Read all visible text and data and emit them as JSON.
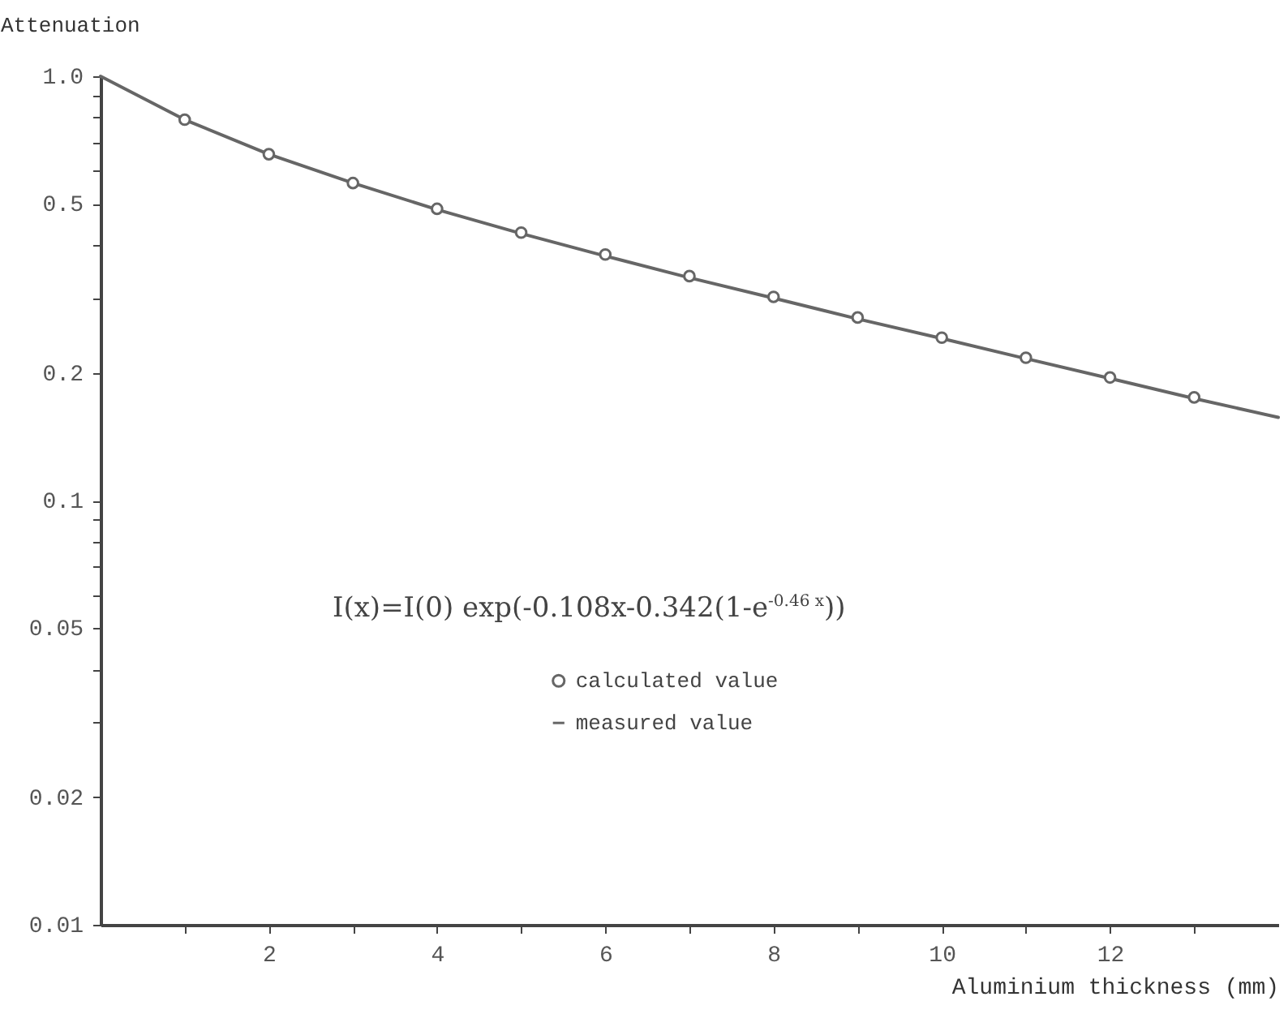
{
  "chart_data": {
    "type": "line",
    "xlabel": "Aluminium  thickness (mm)",
    "ylabel": "Attenuation",
    "annotations": [
      "I(x)=I(0) exp(-0.108x-0.342(1-e$^{-0.46 x}$))"
    ],
    "series": [
      {
        "name": "calculated value",
        "type": "scatter",
        "color": "#666666",
        "x": [
          1,
          2,
          3,
          4,
          5,
          6,
          7,
          8,
          9,
          10,
          11,
          12,
          13
        ],
        "values": [
          0.79,
          0.655,
          0.56,
          0.487,
          0.428,
          0.38,
          0.338,
          0.302,
          0.27,
          0.242,
          0.217,
          0.195,
          0.175
        ]
      },
      {
        "name": "measured value",
        "color": "#666666",
        "x": [
          0,
          1,
          2,
          3,
          4,
          5,
          6,
          7,
          8,
          9,
          10,
          11,
          12,
          13,
          14
        ],
        "values": [
          1.0,
          0.79,
          0.655,
          0.56,
          0.485,
          0.426,
          0.377,
          0.335,
          0.3,
          0.268,
          0.241,
          0.216,
          0.194,
          0.174,
          0.157
        ]
      }
    ],
    "log": "y",
    "xlim": [
      0,
      14
    ],
    "xticks": [
      {
        "value": 1,
        "label": null
      },
      2,
      {
        "value": 3,
        "label": null
      },
      4,
      {
        "value": 5,
        "label": null
      },
      6,
      {
        "value": 7,
        "label": null
      },
      8,
      {
        "value": 9,
        "label": null
      },
      10,
      {
        "value": 11,
        "label": null
      },
      12,
      {
        "value": 13,
        "label": null
      }
    ],
    "ylim": [
      0.01,
      1
    ],
    "yticks": [
      0.01,
      0.02,
      {
        "value": 0.03,
        "label": null
      },
      {
        "value": 0.04,
        "label": null
      },
      0.05,
      {
        "value": 0.06,
        "label": null
      },
      {
        "value": 0.07,
        "label": null
      },
      {
        "value": 0.08,
        "label": null
      },
      {
        "value": 0.09,
        "label": null
      },
      0.1,
      0.2,
      {
        "value": 0.3,
        "label": null
      },
      {
        "value": 0.4,
        "label": null
      },
      0.5,
      {
        "value": 0.6,
        "label": null
      },
      {
        "value": 0.7,
        "label": null
      },
      {
        "value": 0.8,
        "label": null
      },
      {
        "value": 0.9,
        "label": null
      },
      {
        "value": 1,
        "label": "1.0"
      }
    ],
    "legend": "right",
    "grid": false
  }
}
